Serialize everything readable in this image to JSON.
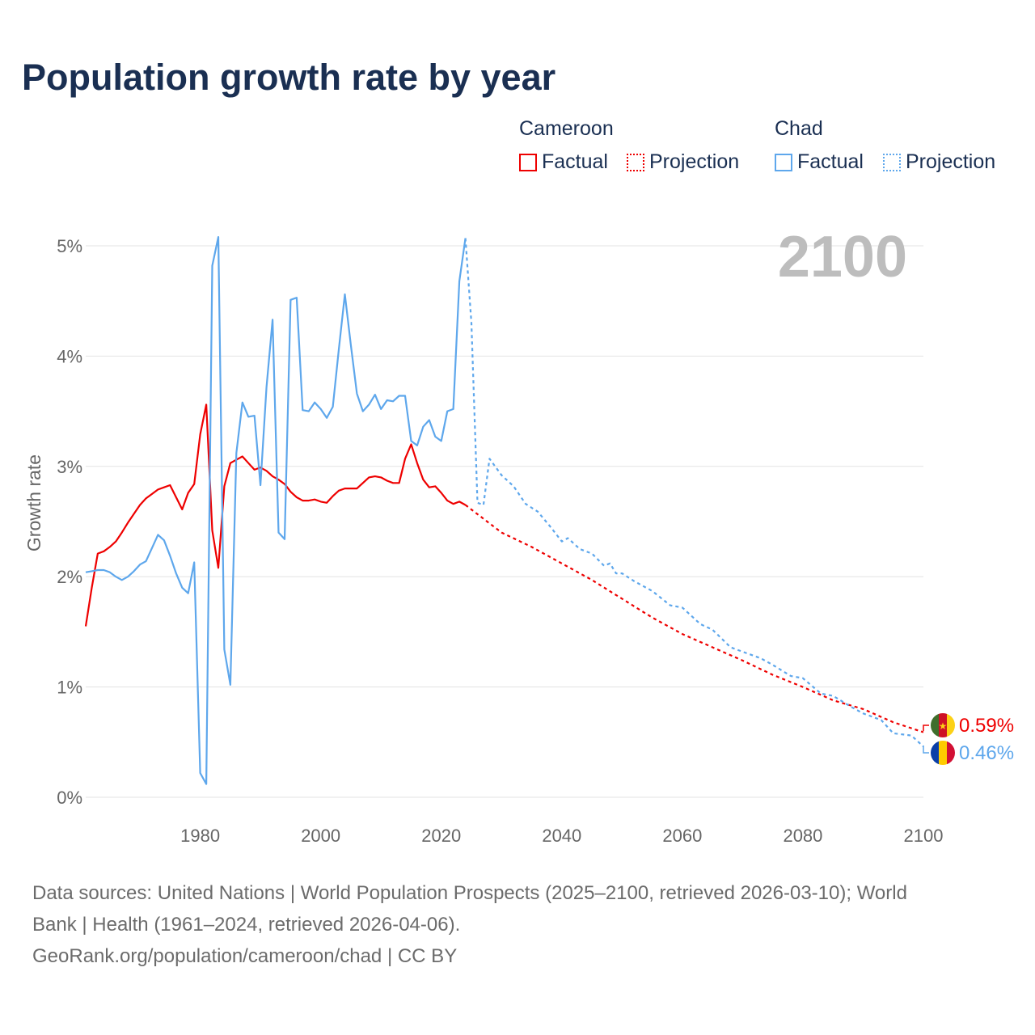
{
  "title": "Population growth rate by year",
  "legend": {
    "groups": [
      {
        "name": "Cameroon",
        "color": "#ee0000",
        "factual": "Factual",
        "projection": "Projection"
      },
      {
        "name": "Chad",
        "color": "#5ea7ec",
        "factual": "Factual",
        "projection": "Projection"
      }
    ]
  },
  "year_label": "2100",
  "end_labels": {
    "cameroon": "0.59%",
    "chad": "0.46%"
  },
  "footer": {
    "line1": "Data sources: United Nations | World Population Prospects (2025–2100, retrieved 2026-03-10); World",
    "line2": "Bank | Health (1961–2024, retrieved 2026-04-06).",
    "line3": "GeoRank.org/population/cameroon/chad | CC BY"
  },
  "chart_data": {
    "type": "line",
    "title": "Population growth rate by year",
    "xlabel": "",
    "ylabel": "Growth rate",
    "xlim": [
      1961,
      2100
    ],
    "ylim": [
      0,
      5
    ],
    "x_ticks": [
      1980,
      2000,
      2020,
      2040,
      2060,
      2080,
      2100
    ],
    "x_tick_labels": [
      "1980",
      "2000",
      "2020",
      "2040",
      "2060",
      "2080",
      "2100"
    ],
    "y_ticks": [
      0,
      1,
      2,
      3,
      4,
      5
    ],
    "y_tick_labels": [
      "0%",
      "1%",
      "2%",
      "3%",
      "4%",
      "5%"
    ],
    "grid": true,
    "legend_position": "top-right",
    "series": [
      {
        "name": "Cameroon Factual",
        "color": "#ee0000",
        "style": "solid",
        "x_start": 1961,
        "values": [
          1.55,
          1.9,
          2.21,
          2.23,
          2.27,
          2.32,
          2.4,
          2.49,
          2.57,
          2.65,
          2.71,
          2.75,
          2.79,
          2.81,
          2.83,
          2.72,
          2.61,
          2.76,
          2.84,
          3.29,
          3.56,
          2.42,
          2.08,
          2.82,
          3.03,
          3.06,
          3.09,
          3.03,
          2.97,
          2.99,
          2.96,
          2.91,
          2.88,
          2.84,
          2.77,
          2.72,
          2.69,
          2.69,
          2.7,
          2.68,
          2.67,
          2.73,
          2.78,
          2.8,
          2.8,
          2.8,
          2.85,
          2.9,
          2.91,
          2.9,
          2.87,
          2.85,
          2.85,
          3.07,
          3.2,
          3.03,
          2.88,
          2.81,
          2.82,
          2.76,
          2.69,
          2.66,
          2.68,
          2.65
        ]
      },
      {
        "name": "Cameroon Projection",
        "color": "#ee0000",
        "style": "dotted",
        "x": [
          2024,
          2030,
          2035,
          2040,
          2045,
          2050,
          2055,
          2060,
          2065,
          2070,
          2075,
          2080,
          2085,
          2090,
          2095,
          2100
        ],
        "values": [
          2.65,
          2.4,
          2.27,
          2.12,
          1.97,
          1.8,
          1.63,
          1.48,
          1.36,
          1.24,
          1.11,
          1.0,
          0.88,
          0.8,
          0.68,
          0.59
        ]
      },
      {
        "name": "Chad Factual",
        "color": "#5ea7ec",
        "style": "solid",
        "x_start": 1961,
        "values": [
          2.04,
          2.05,
          2.06,
          2.06,
          2.04,
          2.0,
          1.97,
          2.0,
          2.05,
          2.11,
          2.14,
          2.26,
          2.38,
          2.33,
          2.19,
          2.03,
          1.9,
          1.85,
          2.13,
          0.22,
          0.12,
          4.82,
          5.08,
          1.34,
          1.02,
          3.12,
          3.58,
          3.45,
          3.46,
          2.83,
          3.72,
          4.33,
          2.4,
          2.34,
          4.51,
          4.53,
          3.51,
          3.5,
          3.58,
          3.52,
          3.44,
          3.54,
          4.06,
          4.56,
          4.1,
          3.66,
          3.5,
          3.56,
          3.65,
          3.52,
          3.6,
          3.59,
          3.64,
          3.64,
          3.23,
          3.19,
          3.36,
          3.42,
          3.27,
          3.23,
          3.5,
          3.52,
          4.68,
          5.07
        ]
      },
      {
        "name": "Chad Projection",
        "color": "#5ea7ec",
        "style": "dotted",
        "x": [
          2024,
          2025,
          2026,
          2027,
          2028,
          2030,
          2032,
          2034,
          2036,
          2038,
          2040,
          2041,
          2043,
          2045,
          2047,
          2048,
          2049,
          2050,
          2052,
          2055,
          2058,
          2060,
          2063,
          2065,
          2068,
          2070,
          2073,
          2075,
          2078,
          2080,
          2083,
          2085,
          2088,
          2090,
          2093,
          2095,
          2098,
          2100
        ],
        "values": [
          5.07,
          4.3,
          2.67,
          2.65,
          3.07,
          2.92,
          2.82,
          2.66,
          2.59,
          2.46,
          2.32,
          2.35,
          2.25,
          2.21,
          2.1,
          2.12,
          2.03,
          2.03,
          1.96,
          1.87,
          1.74,
          1.72,
          1.57,
          1.52,
          1.36,
          1.32,
          1.26,
          1.2,
          1.1,
          1.08,
          0.94,
          0.92,
          0.82,
          0.76,
          0.7,
          0.58,
          0.56,
          0.46
        ]
      }
    ]
  }
}
